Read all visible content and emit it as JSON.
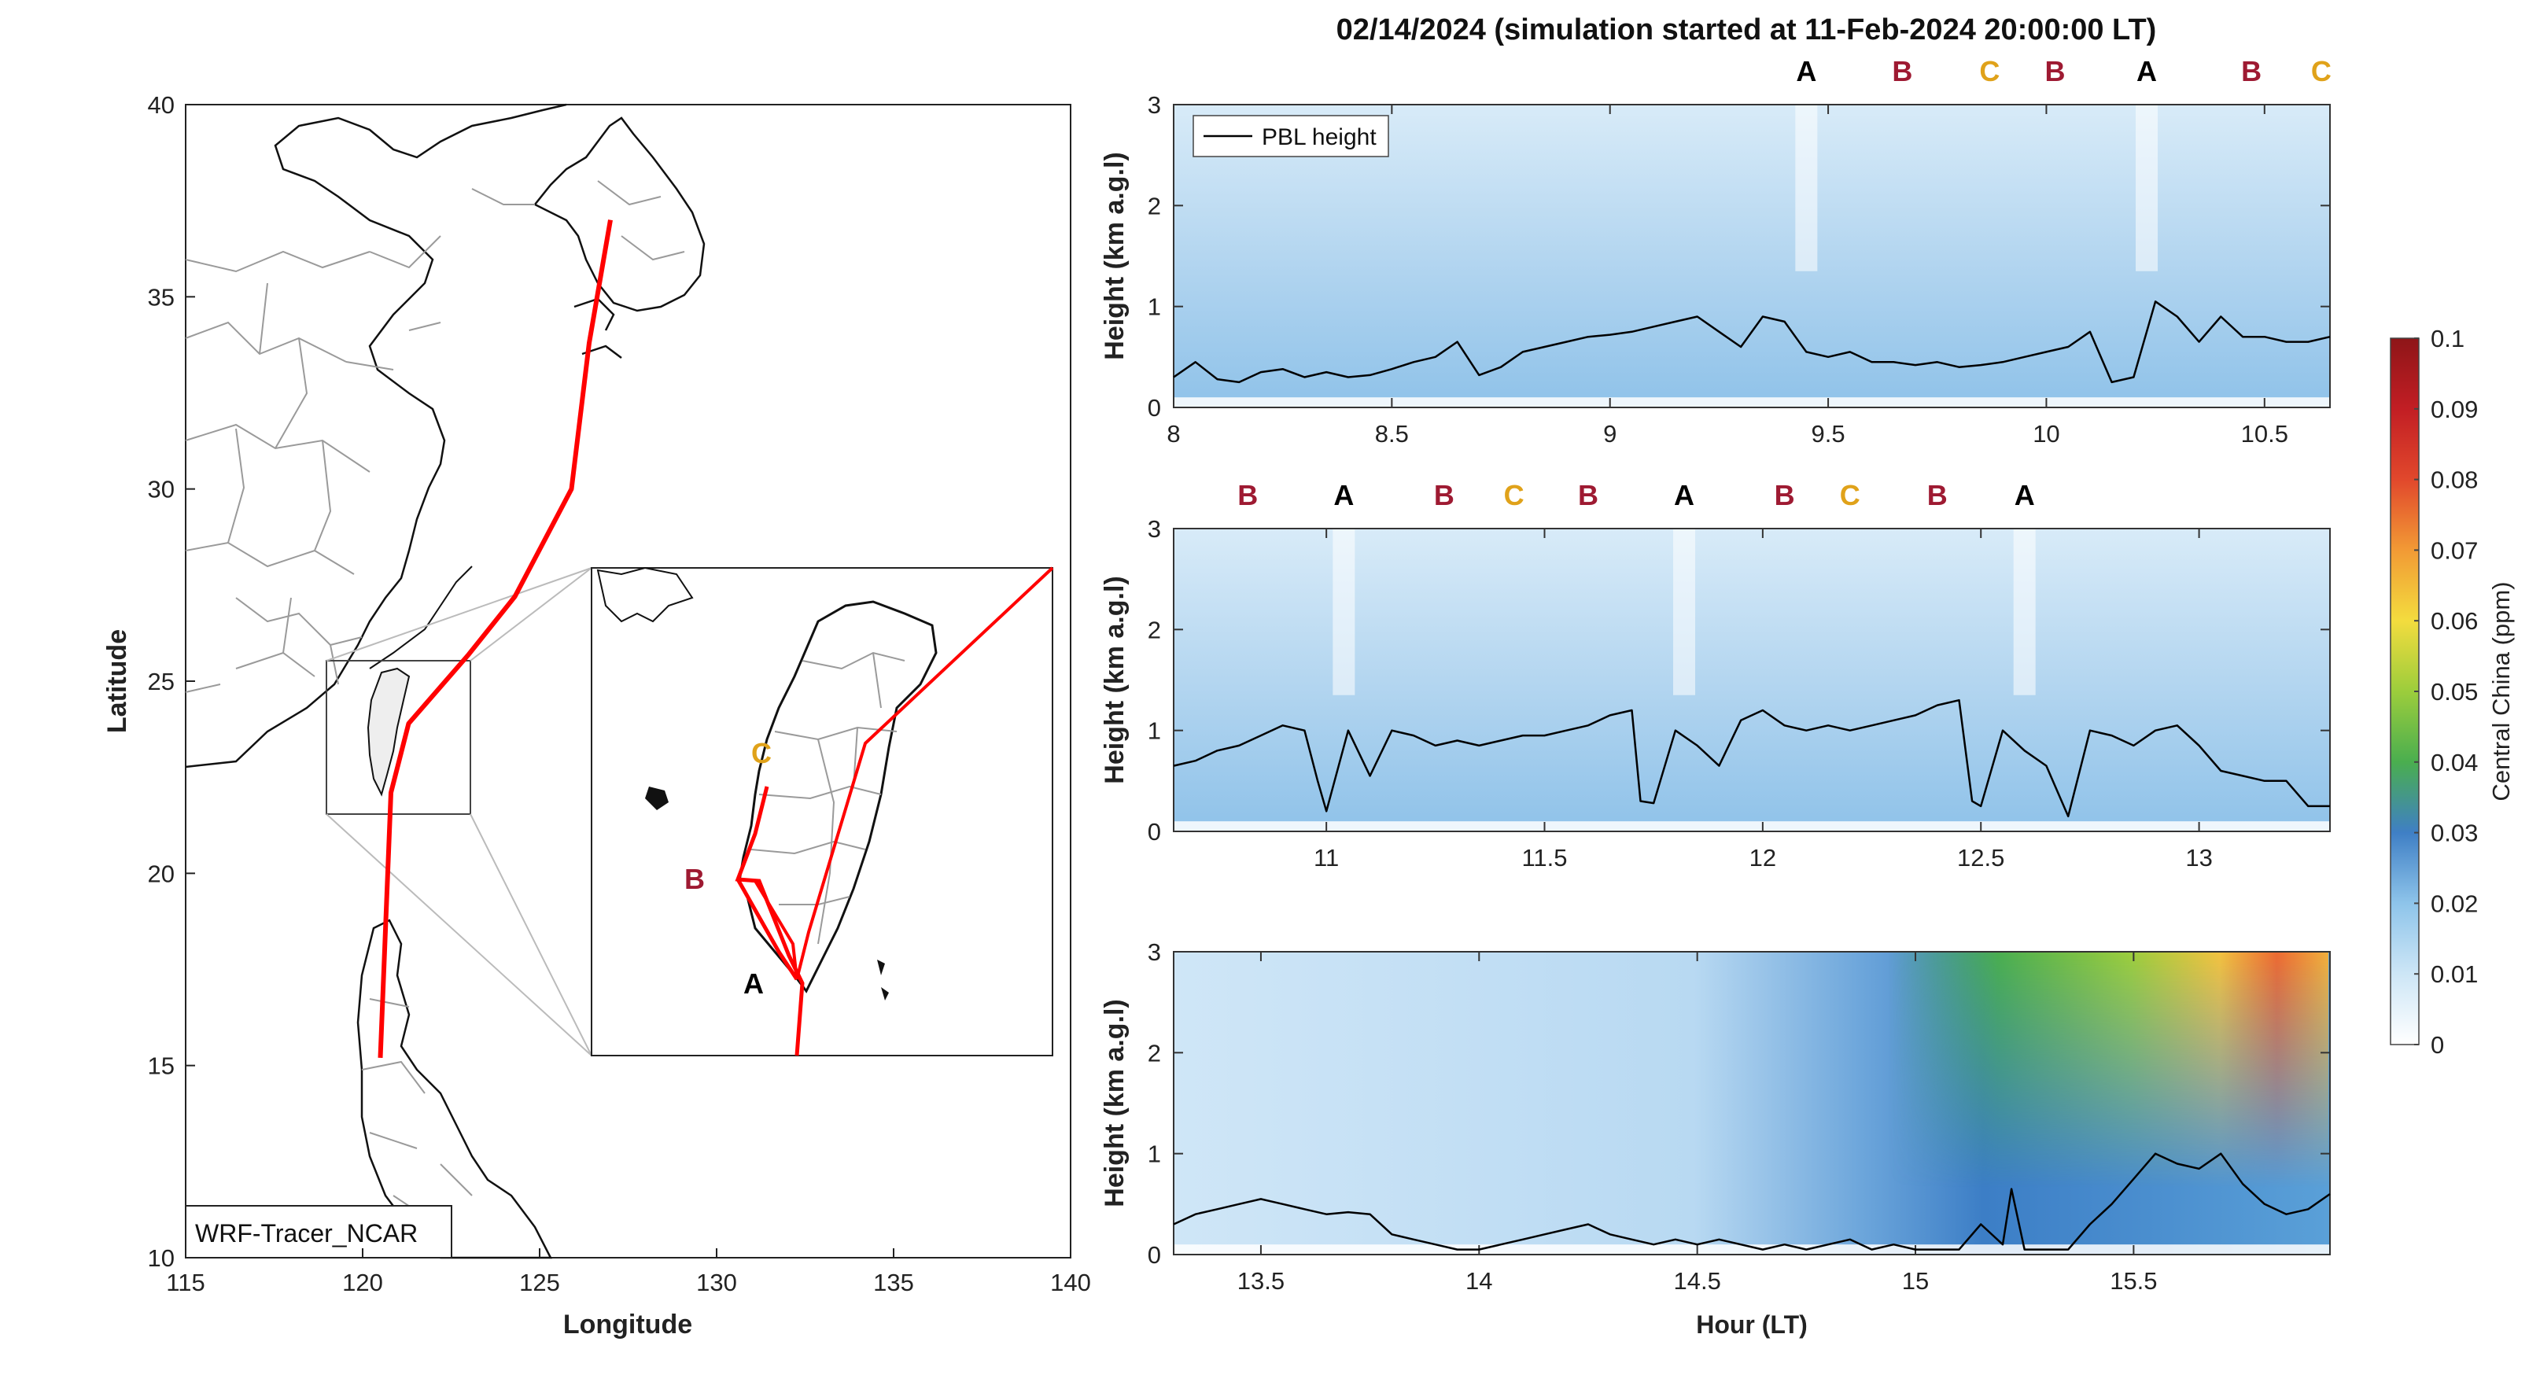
{
  "title": "02/14/2024 (simulation started at 11-Feb-2024 20:00:00 LT)",
  "colors": {
    "A": "#000000",
    "B": "#9e1a32",
    "C": "#e0a21a",
    "track": "#ff0000"
  },
  "map": {
    "xlabel": "Longitude",
    "ylabel": "Latitude",
    "xticks": [
      "115",
      "120",
      "125",
      "130",
      "135",
      "140"
    ],
    "yticks": [
      "40",
      "35",
      "30",
      "25",
      "20",
      "15",
      "10"
    ],
    "xlim": [
      115,
      140
    ],
    "ylim": [
      10,
      40
    ],
    "model_label": "WRF-Tracer_NCAR",
    "track": [
      [
        127.0,
        37.0
      ],
      [
        126.4,
        33.8
      ],
      [
        125.9,
        30.0
      ],
      [
        124.3,
        27.2
      ],
      [
        123.0,
        25.7
      ],
      [
        121.3,
        23.9
      ],
      [
        120.8,
        22.1
      ],
      [
        120.5,
        15.2
      ]
    ],
    "inset_labels": [
      "C",
      "B",
      "A"
    ]
  },
  "colorbar": {
    "label": "Central China (ppm)",
    "ticks": [
      "0.1",
      "0.09",
      "0.08",
      "0.07",
      "0.06",
      "0.05",
      "0.04",
      "0.03",
      "0.02",
      "0.01",
      "0"
    ],
    "range": [
      0,
      0.1
    ]
  },
  "chart_data": [
    {
      "type": "heatmap",
      "xlim": [
        8,
        10.65
      ],
      "ylim": [
        0,
        3
      ],
      "ylabel": "Height (km a.g.l)",
      "xticks": [
        "8",
        "8.5",
        "9",
        "9.5",
        "10",
        "10.5"
      ],
      "yticks": [
        "0",
        "1",
        "2",
        "3"
      ],
      "legend": "PBL height",
      "top_labels": [
        {
          "t": 9.45,
          "label": "A"
        },
        {
          "t": 9.67,
          "label": "B"
        },
        {
          "t": 9.87,
          "label": "C"
        },
        {
          "t": 10.02,
          "label": "B"
        },
        {
          "t": 10.23,
          "label": "A"
        },
        {
          "t": 10.47,
          "label": "B"
        },
        {
          "t": 10.63,
          "label": "C"
        }
      ],
      "pbl": {
        "x": [
          8.0,
          8.05,
          8.1,
          8.15,
          8.2,
          8.25,
          8.3,
          8.35,
          8.4,
          8.45,
          8.5,
          8.55,
          8.6,
          8.65,
          8.7,
          8.75,
          8.8,
          8.85,
          8.9,
          8.95,
          9.0,
          9.05,
          9.1,
          9.15,
          9.2,
          9.25,
          9.3,
          9.35,
          9.4,
          9.45,
          9.5,
          9.55,
          9.6,
          9.65,
          9.7,
          9.75,
          9.8,
          9.85,
          9.9,
          9.95,
          10.0,
          10.05,
          10.1,
          10.15,
          10.2,
          10.25,
          10.3,
          10.35,
          10.4,
          10.45,
          10.5,
          10.55,
          10.6,
          10.65
        ],
        "y": [
          0.3,
          0.45,
          0.28,
          0.25,
          0.35,
          0.38,
          0.3,
          0.35,
          0.3,
          0.32,
          0.38,
          0.45,
          0.5,
          0.65,
          0.32,
          0.4,
          0.55,
          0.6,
          0.65,
          0.7,
          0.72,
          0.75,
          0.8,
          0.85,
          0.9,
          0.75,
          0.6,
          0.9,
          0.85,
          0.55,
          0.5,
          0.55,
          0.45,
          0.45,
          0.42,
          0.45,
          0.4,
          0.42,
          0.45,
          0.5,
          0.55,
          0.6,
          0.75,
          0.25,
          0.3,
          1.05,
          0.9,
          0.65,
          0.9,
          0.7,
          0.7,
          0.65,
          0.65,
          0.7
        ]
      }
    },
    {
      "type": "heatmap",
      "xlim": [
        10.65,
        13.3
      ],
      "ylim": [
        0,
        3
      ],
      "ylabel": "Height (km a.g.l)",
      "xticks": [
        "11",
        "11.5",
        "12",
        "12.5",
        "13"
      ],
      "yticks": [
        "0",
        "1",
        "2",
        "3"
      ],
      "top_labels": [
        {
          "t": 10.82,
          "label": "B"
        },
        {
          "t": 11.04,
          "label": "A"
        },
        {
          "t": 11.27,
          "label": "B"
        },
        {
          "t": 11.43,
          "label": "C"
        },
        {
          "t": 11.6,
          "label": "B"
        },
        {
          "t": 11.82,
          "label": "A"
        },
        {
          "t": 12.05,
          "label": "B"
        },
        {
          "t": 12.2,
          "label": "C"
        },
        {
          "t": 12.4,
          "label": "B"
        },
        {
          "t": 12.6,
          "label": "A"
        }
      ],
      "pbl": {
        "x": [
          10.65,
          10.7,
          10.75,
          10.8,
          10.85,
          10.9,
          10.95,
          10.98,
          11.0,
          11.05,
          11.1,
          11.15,
          11.2,
          11.25,
          11.3,
          11.35,
          11.4,
          11.45,
          11.5,
          11.55,
          11.6,
          11.65,
          11.7,
          11.72,
          11.75,
          11.8,
          11.85,
          11.9,
          11.95,
          12.0,
          12.05,
          12.1,
          12.15,
          12.2,
          12.25,
          12.3,
          12.35,
          12.4,
          12.45,
          12.48,
          12.5,
          12.55,
          12.6,
          12.65,
          12.7,
          12.75,
          12.8,
          12.85,
          12.9,
          12.95,
          13.0,
          13.05,
          13.1,
          13.15,
          13.2,
          13.25,
          13.3
        ],
        "y": [
          0.65,
          0.7,
          0.8,
          0.85,
          0.95,
          1.05,
          1.0,
          0.5,
          0.2,
          1.0,
          0.55,
          1.0,
          0.95,
          0.85,
          0.9,
          0.85,
          0.9,
          0.95,
          0.95,
          1.0,
          1.05,
          1.15,
          1.2,
          0.3,
          0.28,
          1.0,
          0.85,
          0.65,
          1.1,
          1.2,
          1.05,
          1.0,
          1.05,
          1.0,
          1.05,
          1.1,
          1.15,
          1.25,
          1.3,
          0.3,
          0.25,
          1.0,
          0.8,
          0.65,
          0.15,
          1.0,
          0.95,
          0.85,
          1.0,
          1.05,
          0.85,
          0.6,
          0.55,
          0.5,
          0.5,
          0.25,
          0.25
        ]
      }
    },
    {
      "type": "heatmap",
      "xlim": [
        13.3,
        15.95
      ],
      "ylim": [
        0,
        3
      ],
      "ylabel": "Height (km a.g.l)",
      "xlabel": "Hour (LT)",
      "xticks": [
        "13.5",
        "14",
        "14.5",
        "15",
        "15.5"
      ],
      "yticks": [
        "0",
        "1",
        "2",
        "3"
      ],
      "pbl": {
        "x": [
          13.3,
          13.35,
          13.4,
          13.45,
          13.5,
          13.55,
          13.6,
          13.65,
          13.7,
          13.75,
          13.8,
          13.85,
          13.9,
          13.95,
          14.0,
          14.05,
          14.1,
          14.15,
          14.2,
          14.25,
          14.3,
          14.35,
          14.4,
          14.45,
          14.5,
          14.55,
          14.6,
          14.65,
          14.7,
          14.75,
          14.8,
          14.85,
          14.9,
          14.95,
          15.0,
          15.05,
          15.1,
          15.15,
          15.2,
          15.22,
          15.25,
          15.3,
          15.35,
          15.4,
          15.45,
          15.5,
          15.55,
          15.6,
          15.65,
          15.7,
          15.75,
          15.8,
          15.85,
          15.9,
          15.95
        ],
        "y": [
          0.3,
          0.4,
          0.45,
          0.5,
          0.55,
          0.5,
          0.45,
          0.4,
          0.42,
          0.4,
          0.2,
          0.15,
          0.1,
          0.05,
          0.05,
          0.1,
          0.15,
          0.2,
          0.25,
          0.3,
          0.2,
          0.15,
          0.1,
          0.15,
          0.1,
          0.15,
          0.1,
          0.05,
          0.1,
          0.05,
          0.1,
          0.15,
          0.05,
          0.1,
          0.05,
          0.05,
          0.05,
          0.3,
          0.1,
          0.65,
          0.05,
          0.05,
          0.05,
          0.3,
          0.5,
          0.75,
          1.0,
          0.9,
          0.85,
          1.0,
          0.7,
          0.5,
          0.4,
          0.45,
          0.6
        ]
      }
    }
  ]
}
